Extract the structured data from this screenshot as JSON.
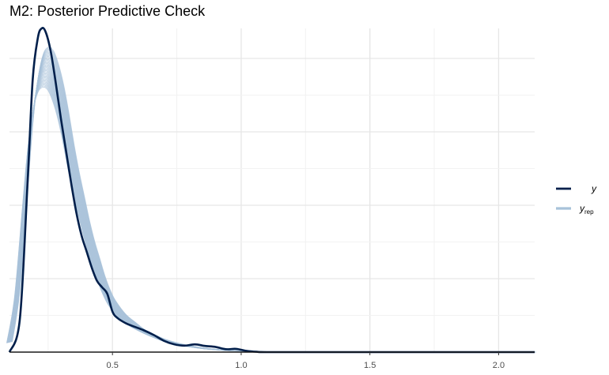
{
  "chart_data": {
    "type": "line",
    "title": "M2: Posterior Predictive Check",
    "xlabel": "",
    "ylabel": "",
    "xlim": [
      0.1,
      2.14
    ],
    "ylim": [
      0,
      1.0
    ],
    "x_ticks": [
      {
        "value": 0.5,
        "label": "0.5"
      },
      {
        "value": 1.0,
        "label": "1.0"
      },
      {
        "value": 1.5,
        "label": "1.5"
      },
      {
        "value": 2.0,
        "label": "2.0"
      }
    ],
    "grid": true,
    "legend_position": "right",
    "legend": [
      {
        "key": "y",
        "label": "y",
        "sub": ""
      },
      {
        "key": "yrep",
        "label": "y",
        "sub": "rep"
      }
    ],
    "series": [
      {
        "key": "y",
        "color": "#011f4b",
        "x": [
          0.1,
          0.14,
          0.17,
          0.19,
          0.21,
          0.225,
          0.24,
          0.26,
          0.28,
          0.3,
          0.32,
          0.34,
          0.36,
          0.38,
          0.4,
          0.42,
          0.44,
          0.46,
          0.48,
          0.5,
          0.52,
          0.55,
          0.58,
          0.62,
          0.66,
          0.7,
          0.74,
          0.78,
          0.82,
          0.86,
          0.9,
          0.94,
          0.98,
          1.02,
          1.06,
          1.1,
          1.3,
          1.6,
          1.9,
          2.14
        ],
        "y": [
          0.0,
          0.1,
          0.52,
          0.84,
          0.97,
          1.0,
          0.99,
          0.93,
          0.83,
          0.72,
          0.62,
          0.52,
          0.43,
          0.36,
          0.31,
          0.26,
          0.22,
          0.2,
          0.18,
          0.125,
          0.105,
          0.09,
          0.08,
          0.068,
          0.053,
          0.035,
          0.024,
          0.02,
          0.024,
          0.019,
          0.016,
          0.009,
          0.01,
          0.004,
          0.001,
          0.0,
          0.0,
          0.0,
          0.0,
          0.0
        ]
      },
      {
        "key": "yrep",
        "color": "#a8c2d9",
        "x": [
          0.1,
          0.13,
          0.16,
          0.18,
          0.2,
          0.22,
          0.24,
          0.26,
          0.28,
          0.3,
          0.32,
          0.34,
          0.36,
          0.38,
          0.4,
          0.42,
          0.44,
          0.46,
          0.48,
          0.5,
          0.54,
          0.58,
          0.62,
          0.66,
          0.7,
          0.75,
          0.8,
          0.85,
          0.9,
          0.95,
          1.0,
          1.1,
          1.2,
          1.4,
          1.7,
          2.14
        ],
        "y": [
          0.03,
          0.18,
          0.47,
          0.66,
          0.79,
          0.86,
          0.88,
          0.87,
          0.83,
          0.77,
          0.69,
          0.6,
          0.52,
          0.45,
          0.38,
          0.32,
          0.27,
          0.22,
          0.18,
          0.15,
          0.11,
          0.085,
          0.065,
          0.05,
          0.037,
          0.026,
          0.018,
          0.012,
          0.008,
          0.005,
          0.003,
          0.001,
          0.0,
          0.0,
          0.0,
          0.0
        ]
      }
    ]
  }
}
